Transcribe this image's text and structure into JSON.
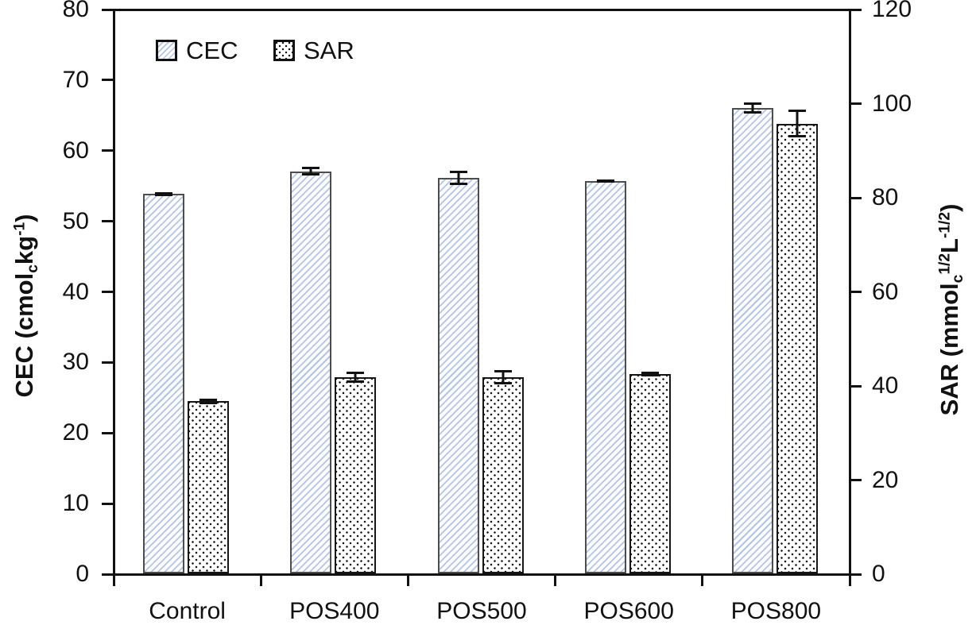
{
  "figure": {
    "background": "#ffffff",
    "text_color": "#111111",
    "axis_color": "#111111"
  },
  "legend": {
    "items": [
      {
        "label": "CEC",
        "pattern": "hatch"
      },
      {
        "label": "SAR",
        "pattern": "dots"
      }
    ]
  },
  "left_axis": {
    "title_parts": [
      {
        "text": "CEC (cmol"
      },
      {
        "text": "c",
        "script": "sub"
      },
      {
        "text": "kg"
      },
      {
        "text": "-1",
        "script": "sup"
      },
      {
        "text": ")"
      }
    ],
    "ticks": [
      0,
      10,
      20,
      30,
      40,
      50,
      60,
      70,
      80
    ],
    "min": 0,
    "max": 80
  },
  "right_axis": {
    "title_parts": [
      {
        "text": "SAR (mmol"
      },
      {
        "text": "c",
        "script": "sub"
      },
      {
        "text": "1/2",
        "script": "sup"
      },
      {
        "text": "L"
      },
      {
        "text": "-1/2",
        "script": "sup"
      },
      {
        "text": ")"
      }
    ],
    "ticks": [
      0,
      20,
      40,
      60,
      80,
      100,
      120
    ],
    "min": 0,
    "max": 120
  },
  "chart_data": {
    "type": "bar",
    "categories": [
      "Control",
      "POS400",
      "POS500",
      "POS600",
      "POS800"
    ],
    "series": [
      {
        "name": "CEC",
        "axis": "left",
        "values": [
          53.7,
          56.9,
          56.0,
          55.5,
          65.9
        ],
        "errors": [
          0.3,
          0.6,
          1.0,
          0.2,
          0.8
        ],
        "pattern": "hatch",
        "fill_color": "#fcfdff",
        "hatch_color": "#b6c3e1",
        "border_color": "#4d4d4d"
      },
      {
        "name": "SAR",
        "axis": "right",
        "values": [
          36.5,
          41.6,
          41.6,
          42.3,
          95.5
        ],
        "errors": [
          0.6,
          1.2,
          1.5,
          0.5,
          3.0
        ],
        "pattern": "dots",
        "fill_color": "#ffffff",
        "dot_color": "#161616",
        "border_color": "#161616"
      }
    ],
    "title": "",
    "xlabel": "",
    "left_ylabel": "CEC (cmolc kg-1)",
    "right_ylabel": "SAR (mmolc 1/2 L-1/2)",
    "left_ylim": [
      0,
      80
    ],
    "right_ylim": [
      0,
      120
    ],
    "grid": false,
    "legend_position": "top-left-inside",
    "error_bars": true
  }
}
